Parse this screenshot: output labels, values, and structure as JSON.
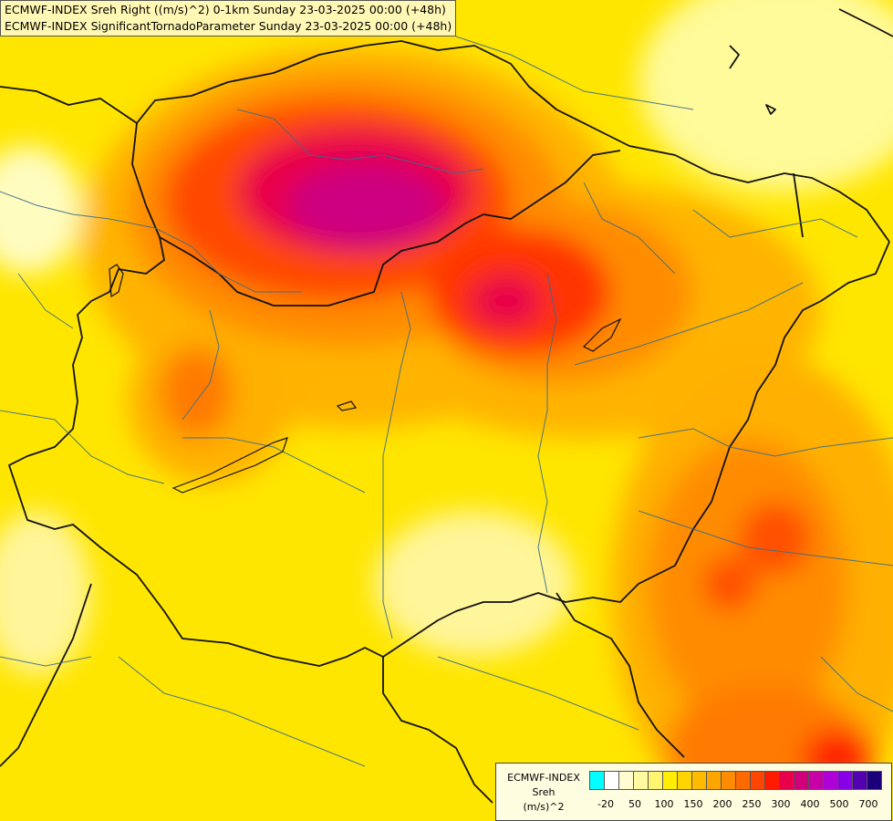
{
  "header": {
    "line1": "ECMWF-INDEX Sreh Right ((m/s)^2) 0-1km Sunday 23-03-2025 00:00 (+48h)",
    "line2": "ECMWF-INDEX SignificantTornadoParameter Sunday 23-03-2025 00:00 (+48h)"
  },
  "legend": {
    "title_1": "ECMWF-INDEX",
    "title_2": "Sreh",
    "title_3": "(m/s)^2",
    "colors": [
      "#00ffff",
      "#ffffff",
      "#fffdd0",
      "#fffaa0",
      "#fff570",
      "#ffee00",
      "#ffd400",
      "#ffbb00",
      "#ffa500",
      "#ff8c00",
      "#ff6a00",
      "#ff4500",
      "#ff1a00",
      "#e8004a",
      "#d0007a",
      "#c800a8",
      "#b000d8",
      "#8800e8",
      "#5500b0",
      "#1c007a"
    ],
    "ticks": [
      "-20",
      "50",
      "100",
      "150",
      "200",
      "250",
      "300",
      "400",
      "500",
      "700"
    ]
  }
}
